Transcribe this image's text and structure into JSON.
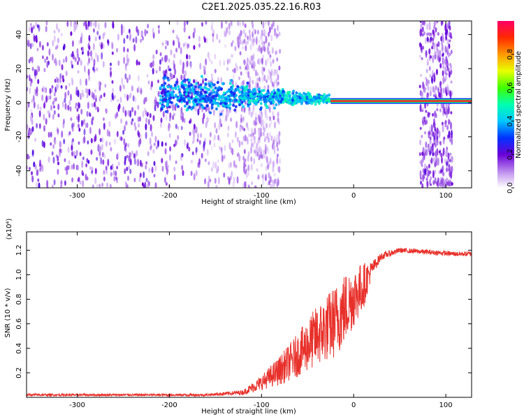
{
  "title": "C2E1.2025.035.22.16.R03",
  "colors": {
    "snr_line": "#e8302a",
    "spectrogram_low": "#6600cc",
    "background": "#ffffff"
  },
  "chart_data": [
    {
      "type": "heatmap",
      "xlabel": "Height of straight line (km)",
      "ylabel": "Frequency (Hz)",
      "xlim": [
        -355,
        128
      ],
      "ylim": [
        -50,
        48
      ],
      "xticks": [
        -300,
        -200,
        -100,
        0,
        100
      ],
      "yticks": [
        -40,
        -20,
        0,
        20,
        40
      ],
      "colorbar": {
        "label": "Normalized spectral amplitude",
        "range": [
          0,
          1
        ],
        "ticks": [
          "0.0",
          "0.2",
          "0.4",
          "0.6",
          "0.8"
        ]
      },
      "features": [
        {
          "x_range": [
            -355,
            -120
          ],
          "freq_range": [
            -50,
            48
          ],
          "level": 0.15,
          "description": "diffuse broadband noise"
        },
        {
          "x_range": [
            -210,
            -25
          ],
          "center_freq": 2,
          "level": 0.4,
          "description": "band converging toward ~1 Hz"
        },
        {
          "x_range": [
            -25,
            128
          ],
          "center_freq": 1,
          "level": 1.0,
          "description": "narrow carrier line"
        },
        {
          "x_range": [
            72,
            107
          ],
          "freq_range": [
            -50,
            48
          ],
          "level": 0.12,
          "description": "broadband burst"
        }
      ]
    },
    {
      "type": "line",
      "xlabel": "Height of straight line (km)",
      "ylabel": "SNR (10 * v/v)",
      "y_multiplier": "(x10⁴)",
      "xlim": [
        -355,
        128
      ],
      "ylim": [
        0,
        1.35
      ],
      "xticks": [
        -300,
        -200,
        -100,
        0,
        100
      ],
      "yticks": [
        "0.2",
        "0.4",
        "0.6",
        "0.8",
        "1.0",
        "1.2"
      ],
      "series": [
        {
          "x": [
            -355,
            -300,
            -250,
            -200,
            -160,
            -120,
            -100,
            -80,
            -60,
            -40,
            -20,
            -10,
            0,
            10,
            20,
            30,
            50,
            70,
            90,
            110,
            128
          ],
          "y": [
            0.02,
            0.02,
            0.02,
            0.02,
            0.02,
            0.04,
            0.12,
            0.22,
            0.35,
            0.5,
            0.62,
            0.72,
            0.82,
            0.9,
            1.05,
            1.15,
            1.2,
            1.19,
            1.18,
            1.17,
            1.17
          ],
          "noise": [
            0.01,
            0.01,
            0.01,
            0.01,
            0.01,
            0.02,
            0.06,
            0.12,
            0.18,
            0.25,
            0.3,
            0.3,
            0.25,
            0.2,
            0.06,
            0.03,
            0.02,
            0.02,
            0.02,
            0.02,
            0.02
          ]
        }
      ]
    }
  ]
}
